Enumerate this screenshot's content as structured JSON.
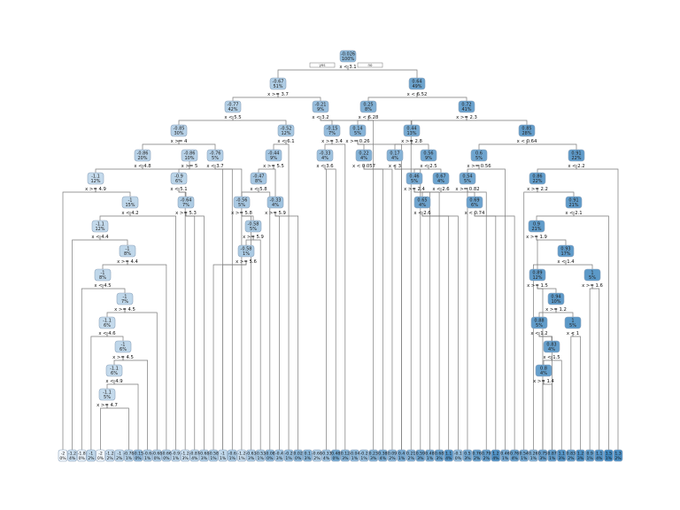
{
  "root": {
    "value": "-0.026",
    "pct": "100%",
    "split": "x < 3.1",
    "yes": "yes",
    "no": "no"
  },
  "nodes": [
    {
      "id": "n2",
      "value": "-0.67",
      "pct": "51%",
      "split": "x >= 3.7"
    },
    {
      "id": "n3",
      "value": "0.64",
      "pct": "49%",
      "split": "x < 6.52"
    },
    {
      "id": "n4",
      "value": "-0.77",
      "pct": "42%",
      "split": "x < 5.5"
    },
    {
      "id": "n5",
      "value": "-0.21",
      "pct": "9%",
      "split": "x < 3.2"
    },
    {
      "id": "n6",
      "value": "0.25",
      "pct": "8%",
      "split": "x < 6.28"
    },
    {
      "id": "n7",
      "value": "0.72",
      "pct": "41%",
      "split": "x >= 2.3"
    },
    {
      "id": "n8",
      "value": "-0.85",
      "pct": "30%",
      "split": "x >= 4"
    },
    {
      "id": "n9",
      "value": "-0.52",
      "pct": "12%",
      "split": "x < 6.1"
    },
    {
      "id": "n11",
      "value": "-0.15",
      "pct": "7%",
      "split": "x >= 3.4"
    },
    {
      "id": "n12",
      "value": "0.14",
      "pct": "5%",
      "split": "x >= 0.26"
    },
    {
      "id": "n14",
      "value": "0.44",
      "pct": "13%",
      "split": "x >= 2.8"
    },
    {
      "id": "n15",
      "value": "0.85",
      "pct": "28%",
      "split": "x < 0.64"
    },
    {
      "id": "n16",
      "value": "-0.86",
      "pct": "20%",
      "split": "x < 4.8"
    },
    {
      "id": "n17",
      "value": "-0.76",
      "pct": "5%",
      "split": "x < 3.7"
    },
    {
      "id": "n17b",
      "value": "-0.86",
      "pct": "10%",
      "split": "x >= 5"
    },
    {
      "id": "n18",
      "value": "-0.44",
      "pct": "9%",
      "split": "x >= 5.5"
    },
    {
      "id": "n23",
      "value": "-0.33",
      "pct": "4%",
      "split": "x < 3.6"
    },
    {
      "id": "n25",
      "value": "0.22",
      "pct": "4%",
      "split": "x < 0.057"
    },
    {
      "id": "n28",
      "value": "0.17",
      "pct": "4%",
      "split": "x < 3"
    },
    {
      "id": "n29",
      "value": "0.56",
      "pct": "9%",
      "split": "x < 2.5"
    },
    {
      "id": "n30",
      "value": "0.6",
      "pct": "5%",
      "split": "x >= 0.56"
    },
    {
      "id": "n31",
      "value": "0.91",
      "pct": "22%",
      "split": "x < 2.2"
    },
    {
      "id": "n32",
      "value": "-1.1",
      "pct": "12%",
      "split": "x >= 4.9"
    },
    {
      "id": "n33",
      "value": "-0.9",
      "pct": "6%",
      "split": "x < 5.1"
    },
    {
      "id": "n34",
      "value": "-0.47",
      "pct": "8%",
      "split": "x < 5.8"
    },
    {
      "id": "n35",
      "value": "-0.64",
      "pct": "7%",
      "split": "x >= 5.3"
    },
    {
      "id": "n36",
      "value": "-0.56",
      "pct": "5%",
      "split": "x >= 5.8"
    },
    {
      "id": "n37",
      "value": "-0.33",
      "pct": "4%",
      "split": "x >= 5.9"
    },
    {
      "id": "n38",
      "value": "-0.58",
      "pct": "5%",
      "split": "x >= 5.9"
    },
    {
      "id": "n39",
      "value": "-0.58",
      "pct": "1%",
      "split": "x >= 5.6"
    },
    {
      "id": "n40",
      "value": "0.46",
      "pct": "5%",
      "split": "x >= 2.4"
    },
    {
      "id": "n41",
      "value": "0.67",
      "pct": "4%",
      "split": "x < 2.6"
    },
    {
      "id": "n42",
      "value": "0.65",
      "pct": "4%",
      "split": "x < 2.6"
    },
    {
      "id": "n43",
      "value": "0.54",
      "pct": "5%",
      "split": "x >= 0.82"
    },
    {
      "id": "n44",
      "value": "0.69",
      "pct": "6%",
      "split": "x < 0.74"
    },
    {
      "id": "n45",
      "value": "0.86",
      "pct": "22%",
      "split": "x >= 2.2"
    },
    {
      "id": "n46",
      "value": "0.91",
      "pct": "21%",
      "split": "x < 2.1"
    },
    {
      "id": "n47",
      "value": "-1",
      "pct": "15%",
      "split": "x < 4.2"
    },
    {
      "id": "n48",
      "value": "-1.1",
      "pct": "12%",
      "split": "x < 4.4"
    },
    {
      "id": "n49",
      "value": "-1",
      "pct": "8%",
      "split": "x >= 4.4"
    },
    {
      "id": "n50",
      "value": "-1",
      "pct": "8%",
      "split": "x < 4.5"
    },
    {
      "id": "n51",
      "value": "-1",
      "pct": "7%",
      "split": "x >= 4.5"
    },
    {
      "id": "n52",
      "value": "-1.1",
      "pct": "6%",
      "split": "x < 4.6"
    },
    {
      "id": "n53",
      "value": "-1",
      "pct": "6%",
      "split": "x >= 4.5"
    },
    {
      "id": "n54",
      "value": "-1.1",
      "pct": "6%",
      "split": "x < 4.9"
    },
    {
      "id": "n55",
      "value": "-1.1",
      "pct": "5%",
      "split": "x >= 4.7"
    },
    {
      "id": "n60",
      "value": "0.9",
      "pct": "21%",
      "split": "x >= 1.9"
    },
    {
      "id": "n61",
      "value": "0.93",
      "pct": "17%",
      "split": "x < 1.4"
    },
    {
      "id": "n62",
      "value": "0.89",
      "pct": "12%",
      "split": "x >= 1.5"
    },
    {
      "id": "n63",
      "value": "1",
      "pct": "5%",
      "split": "x >= 1.6"
    },
    {
      "id": "n64",
      "value": "0.94",
      "pct": "10%",
      "split": "x >= 1.2"
    },
    {
      "id": "n65",
      "value": "0.88",
      "pct": "5%",
      "split": "x < 1.2"
    },
    {
      "id": "n66",
      "value": "1",
      "pct": "5%",
      "split": "x < 1"
    },
    {
      "id": "n67",
      "value": "0.83",
      "pct": "4%",
      "split": "x < 1.5"
    },
    {
      "id": "n68",
      "value": "0.8",
      "pct": "4%",
      "split": "x >= 1.4"
    }
  ],
  "leaves": [
    {
      "value": "-2",
      "pct": "0%"
    },
    {
      "value": "-1.2",
      "pct": "4%"
    },
    {
      "value": "-1.8",
      "pct": "0%"
    },
    {
      "value": "-1",
      "pct": "2%"
    },
    {
      "value": "-2",
      "pct": "0%"
    },
    {
      "value": "-1.2",
      "pct": "2%"
    },
    {
      "value": "-1",
      "pct": "2%"
    },
    {
      "value": "-0.78",
      "pct": "1%"
    },
    {
      "value": "-0.15",
      "pct": "0%"
    },
    {
      "value": "-0.6",
      "pct": "1%"
    },
    {
      "value": "-0.68",
      "pct": "0%"
    },
    {
      "value": "-0.66",
      "pct": "0%"
    },
    {
      "value": "-0.9",
      "pct": "1%"
    },
    {
      "value": "-1.2",
      "pct": "3%"
    },
    {
      "value": "-0.87",
      "pct": "4%"
    },
    {
      "value": "-0.68",
      "pct": "3%"
    },
    {
      "value": "-0.58",
      "pct": "1%"
    },
    {
      "value": "-1",
      "pct": "1%"
    },
    {
      "value": "-0.6",
      "pct": "1%"
    },
    {
      "value": "-1.2",
      "pct": "1%"
    },
    {
      "value": "-0.63",
      "pct": "3%"
    },
    {
      "value": "-0.53",
      "pct": "1%"
    },
    {
      "value": "-0.08",
      "pct": "0%"
    },
    {
      "value": "-0.4",
      "pct": "3%"
    },
    {
      "value": "-0.2",
      "pct": "1%"
    },
    {
      "value": "0.02",
      "pct": "0%"
    },
    {
      "value": "0.1",
      "pct": "3%"
    },
    {
      "value": "-0.68",
      "pct": "2%"
    },
    {
      "value": "-0.33",
      "pct": "4%"
    },
    {
      "value": "0.48",
      "pct": "0%"
    },
    {
      "value": "0.12",
      "pct": "3%"
    },
    {
      "value": "-0.04",
      "pct": "1%"
    },
    {
      "value": "-0.2",
      "pct": "1%"
    },
    {
      "value": "0.23",
      "pct": "3%"
    },
    {
      "value": "0.38",
      "pct": "4%"
    },
    {
      "value": "0.09",
      "pct": "2%"
    },
    {
      "value": "0.4",
      "pct": "1%"
    },
    {
      "value": "0.21",
      "pct": "2%"
    },
    {
      "value": "0.59",
      "pct": "3%"
    },
    {
      "value": "0.48",
      "pct": "1%"
    },
    {
      "value": "0.68",
      "pct": "3%"
    },
    {
      "value": "1.1",
      "pct": "4%"
    },
    {
      "value": "-0.1",
      "pct": "0%"
    },
    {
      "value": "0.5",
      "pct": "3%"
    },
    {
      "value": "0.76",
      "pct": "2%"
    },
    {
      "value": "0.79",
      "pct": "2%"
    },
    {
      "value": "1.2",
      "pct": "4%"
    },
    {
      "value": "0.46",
      "pct": "1%"
    },
    {
      "value": "0.76",
      "pct": "4%"
    },
    {
      "value": "0.54",
      "pct": "1%"
    },
    {
      "value": "0.26",
      "pct": "1%"
    },
    {
      "value": "0.75",
      "pct": "3%"
    },
    {
      "value": "0.87",
      "pct": "1%"
    },
    {
      "value": "1.1",
      "pct": "3%"
    },
    {
      "value": "0.83",
      "pct": "2%"
    },
    {
      "value": "1.2",
      "pct": "3%"
    },
    {
      "value": "0.9",
      "pct": "1%"
    },
    {
      "value": "1.1",
      "pct": "4%"
    },
    {
      "value": "1.5",
      "pct": "1%"
    },
    {
      "value": "1.3",
      "pct": "2%"
    }
  ],
  "colors": {
    "node_low": "#f1f6fb",
    "node_high": "#4f91c4",
    "edge": "#7a7a7a"
  }
}
